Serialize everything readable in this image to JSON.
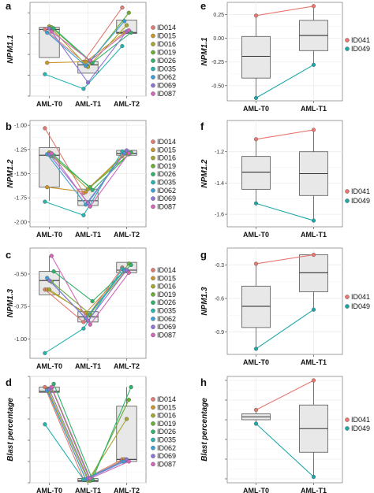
{
  "colors": {
    "ID014": "#e07b72",
    "ID015": "#c9952b",
    "ID016": "#a3a52d",
    "ID019": "#6aae36",
    "ID026": "#2fb36b",
    "ID035": "#27b4b0",
    "ID062": "#3a9fd6",
    "ID069": "#8e74d8",
    "ID087": "#d366b8",
    "ID041": "#e8776f",
    "ID049": "#1fa7a8"
  },
  "chart_data": [
    {
      "type": "box",
      "panel": "a",
      "ylabel": "NPM1.1",
      "categories": [
        "AML-T0",
        "AML-T1",
        "AML-T2"
      ],
      "ylim": [
        -0.6,
        0.3
      ],
      "yticks": [
        -0.6,
        -0.4,
        -0.2,
        0.0,
        0.2
      ],
      "ytick_labels": [
        "",
        "",
        "",
        "",
        ""
      ],
      "boxes": [
        {
          "q1": -0.23,
          "median": 0.04,
          "q3": 0.06,
          "wlo": -0.23,
          "whi": 0.06
        },
        {
          "q1": -0.38,
          "median": -0.3,
          "q3": -0.27,
          "wlo": -0.38,
          "whi": -0.27
        },
        {
          "q1": 0.0,
          "median": 0.01,
          "q3": 0.13,
          "wlo": 0.0,
          "whi": 0.13
        }
      ],
      "series": [
        {
          "name": "ID014",
          "values": [
            0.04,
            -0.27,
            0.25
          ]
        },
        {
          "name": "ID015",
          "values": [
            -0.28,
            -0.27,
            0.01
          ]
        },
        {
          "name": "ID016",
          "values": [
            0.07,
            -0.32,
            0.08
          ]
        },
        {
          "name": "ID019",
          "values": [
            0.06,
            -0.27,
            0.2
          ]
        },
        {
          "name": "ID026",
          "values": [
            0.05,
            -0.28,
            0.01
          ]
        },
        {
          "name": "ID035",
          "values": [
            -0.39,
            -0.53,
            -0.12
          ]
        },
        {
          "name": "ID062",
          "values": [
            0.01,
            -0.31,
            0.12
          ]
        },
        {
          "name": "ID069",
          "values": [
            0.05,
            -0.47,
            0.02
          ]
        },
        {
          "name": "ID087",
          "values": [
            0.02,
            -0.26,
            0.03
          ]
        }
      ]
    },
    {
      "type": "box",
      "panel": "b",
      "ylabel": "NPM1.2",
      "categories": [
        "AML-T0",
        "AML-T1",
        "AML-T2"
      ],
      "ylim": [
        -2.05,
        -0.95
      ],
      "yticks": [
        -2.0,
        -1.75,
        -1.5,
        -1.25,
        -1.0
      ],
      "ytick_labels": [
        "-2.00",
        "-1.75",
        "-1.50",
        "-1.25",
        "-1.00"
      ],
      "boxes": [
        {
          "q1": -1.64,
          "median": -1.31,
          "q3": -1.23,
          "wlo": -1.78,
          "whi": -1.07
        },
        {
          "q1": -1.83,
          "median": -1.78,
          "q3": -1.66,
          "wlo": -1.83,
          "whi": -1.66
        },
        {
          "q1": -1.31,
          "median": -1.29,
          "q3": -1.26,
          "wlo": -1.31,
          "whi": -1.26
        }
      ],
      "series": [
        {
          "name": "ID014",
          "values": [
            -1.03,
            -1.7,
            -1.32
          ]
        },
        {
          "name": "ID015",
          "values": [
            -1.64,
            -1.69,
            -1.29
          ]
        },
        {
          "name": "ID016",
          "values": [
            -1.28,
            -1.66,
            -1.29
          ]
        },
        {
          "name": "ID019",
          "values": [
            -1.32,
            -1.64,
            -1.3
          ]
        },
        {
          "name": "ID026",
          "values": [
            -1.31,
            -1.67,
            -1.28
          ]
        },
        {
          "name": "ID035",
          "values": [
            -1.79,
            -1.93,
            -1.27
          ]
        },
        {
          "name": "ID062",
          "values": [
            -1.3,
            -1.82,
            -1.29
          ]
        },
        {
          "name": "ID069",
          "values": [
            -1.3,
            -1.8,
            -1.26
          ]
        },
        {
          "name": "ID087",
          "values": [
            -1.29,
            -1.84,
            -1.29
          ]
        }
      ]
    },
    {
      "type": "box",
      "panel": "c",
      "ylabel": "NPM1.3",
      "categories": [
        "AML-T0",
        "AML-T1",
        "AML-T2"
      ],
      "ylim": [
        -1.15,
        -0.3
      ],
      "yticks": [
        -1.0,
        -0.75,
        -0.5
      ],
      "ytick_labels": [
        "-1.00",
        "-0.75",
        "-0.50"
      ],
      "boxes": [
        {
          "q1": -0.66,
          "median": -0.55,
          "q3": -0.48,
          "wlo": -0.66,
          "whi": -0.36
        },
        {
          "q1": -0.87,
          "median": -0.83,
          "q3": -0.79,
          "wlo": -0.87,
          "whi": -0.79
        },
        {
          "q1": -0.49,
          "median": -0.47,
          "q3": -0.41,
          "wlo": -0.49,
          "whi": -0.41
        }
      ],
      "series": [
        {
          "name": "ID014",
          "values": [
            -0.62,
            -0.87,
            -0.45
          ]
        },
        {
          "name": "ID015",
          "values": [
            -0.62,
            -0.8,
            -0.48
          ]
        },
        {
          "name": "ID016",
          "values": [
            -0.62,
            -0.82,
            -0.47
          ]
        },
        {
          "name": "ID019",
          "values": [
            -0.56,
            -0.81,
            -0.42
          ]
        },
        {
          "name": "ID026",
          "values": [
            -0.48,
            -0.71,
            -0.43
          ]
        },
        {
          "name": "ID035",
          "values": [
            -1.11,
            -0.92,
            -0.46
          ]
        },
        {
          "name": "ID062",
          "values": [
            -0.53,
            -0.84,
            -0.47
          ]
        },
        {
          "name": "ID069",
          "values": [
            -0.55,
            -0.86,
            -0.47
          ]
        },
        {
          "name": "ID087",
          "values": [
            -0.36,
            -0.89,
            -0.49
          ]
        }
      ]
    },
    {
      "type": "box",
      "panel": "d",
      "ylabel": "Blast percentage",
      "categories": [
        "AML-T0",
        "AML-T1",
        "AML-T2"
      ],
      "ylim": [
        0,
        100
      ],
      "yticks": [
        0,
        20,
        40,
        60,
        80,
        100
      ],
      "ytick_labels": [
        "",
        "",
        "",
        "",
        "",
        ""
      ],
      "boxes": [
        {
          "q1": 85,
          "median": 86,
          "q3": 90,
          "wlo": 85,
          "whi": 90
        },
        {
          "q1": 1,
          "median": 2,
          "q3": 4,
          "wlo": 1,
          "whi": 4
        },
        {
          "q1": 20,
          "median": 22,
          "q3": 72,
          "wlo": 20,
          "whi": 90
        }
      ],
      "series": [
        {
          "name": "ID014",
          "values": [
            90,
            3,
            22
          ]
        },
        {
          "name": "ID015",
          "values": [
            88,
            3,
            22
          ]
        },
        {
          "name": "ID016",
          "values": [
            85,
            2,
            60
          ]
        },
        {
          "name": "ID019",
          "values": [
            89,
            2,
            78
          ]
        },
        {
          "name": "ID026",
          "values": [
            93,
            3,
            90
          ]
        },
        {
          "name": "ID035",
          "values": [
            55,
            3,
            20
          ]
        },
        {
          "name": "ID062",
          "values": [
            87,
            3,
            20
          ]
        },
        {
          "name": "ID069",
          "values": [
            88,
            4,
            22
          ]
        },
        {
          "name": "ID087",
          "values": [
            90,
            4,
            20
          ]
        }
      ]
    },
    {
      "type": "box",
      "panel": "e",
      "ylabel": "NPM1.1",
      "categories": [
        "AML-T0",
        "AML-T1"
      ],
      "ylim": [
        -0.66,
        0.38
      ],
      "yticks": [
        -0.5,
        -0.25,
        0.0,
        0.25
      ],
      "ytick_labels": [
        "-0.50",
        "-0.25",
        "0.00",
        "0.25"
      ],
      "boxes": [
        {
          "q1": -0.42,
          "median": -0.19,
          "q3": 0.02,
          "wlo": -0.63,
          "whi": 0.24
        },
        {
          "q1": -0.13,
          "median": 0.03,
          "q3": 0.19,
          "wlo": -0.28,
          "whi": 0.34
        }
      ],
      "series": [
        {
          "name": "ID041",
          "values": [
            0.24,
            0.34
          ]
        },
        {
          "name": "ID049",
          "values": [
            -0.63,
            -0.28
          ]
        }
      ]
    },
    {
      "type": "box",
      "panel": "f",
      "ylabel": "NPM1.2",
      "categories": [
        "AML-T0",
        "AML-T1"
      ],
      "ylim": [
        -1.68,
        -1.0
      ],
      "yticks": [
        -1.6,
        -1.4,
        -1.2
      ],
      "ytick_labels": [
        "-1.6",
        "-1.4",
        "-1.2"
      ],
      "boxes": [
        {
          "q1": -1.44,
          "median": -1.33,
          "q3": -1.23,
          "wlo": -1.53,
          "whi": -1.12
        },
        {
          "q1": -1.48,
          "median": -1.34,
          "q3": -1.2,
          "wlo": -1.64,
          "whi": -1.06
        }
      ],
      "series": [
        {
          "name": "ID041",
          "values": [
            -1.12,
            -1.06
          ]
        },
        {
          "name": "ID049",
          "values": [
            -1.53,
            -1.64
          ]
        }
      ]
    },
    {
      "type": "box",
      "panel": "g",
      "ylabel": "NPM1.3",
      "categories": [
        "AML-T0",
        "AML-T1"
      ],
      "ylim": [
        -1.1,
        -0.15
      ],
      "yticks": [
        -0.9,
        -0.6,
        -0.3
      ],
      "ytick_labels": [
        "-0.9",
        "-0.6",
        "-0.3"
      ],
      "boxes": [
        {
          "q1": -0.86,
          "median": -0.67,
          "q3": -0.49,
          "wlo": -1.05,
          "whi": -0.29
        },
        {
          "q1": -0.54,
          "median": -0.37,
          "q3": -0.21,
          "wlo": -0.7,
          "whi": -0.21
        }
      ],
      "series": [
        {
          "name": "ID041",
          "values": [
            -0.29,
            -0.21
          ]
        },
        {
          "name": "ID049",
          "values": [
            -1.05,
            -0.7
          ]
        }
      ]
    },
    {
      "type": "box",
      "panel": "h",
      "ylabel": "Blast percentage",
      "categories": [
        "AML-T0",
        "AML-T1"
      ],
      "ylim": [
        -4,
        104
      ],
      "yticks": [
        0,
        20,
        40,
        60,
        80,
        100
      ],
      "ytick_labels": [
        "",
        "",
        "",
        "",
        "",
        ""
      ],
      "boxes": [
        {
          "q1": 60,
          "median": 63,
          "q3": 66,
          "wlo": 56,
          "whi": 70
        },
        {
          "q1": 27,
          "median": 51,
          "q3": 75,
          "wlo": 2,
          "whi": 100
        }
      ],
      "series": [
        {
          "name": "ID041",
          "values": [
            70,
            100
          ]
        },
        {
          "name": "ID049",
          "values": [
            56,
            2
          ]
        }
      ]
    }
  ]
}
